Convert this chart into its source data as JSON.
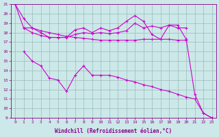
{
  "xlabel": "Windchill (Refroidissement éolien,°C)",
  "xlim": [
    -0.5,
    23.5
  ],
  "ylim": [
    9,
    21
  ],
  "yticks": [
    9,
    10,
    11,
    12,
    13,
    14,
    15,
    16,
    17,
    18,
    19,
    20,
    21
  ],
  "xticks": [
    0,
    1,
    2,
    3,
    4,
    5,
    6,
    7,
    8,
    9,
    10,
    11,
    12,
    13,
    14,
    15,
    16,
    17,
    18,
    19,
    20,
    21,
    22,
    23
  ],
  "background_color": "#cce8e8",
  "line_color": "#cc00cc",
  "grid_color": "#99bbbb",
  "line1_x": [
    0,
    1,
    2,
    3,
    4,
    5,
    6,
    7,
    8,
    9,
    10,
    11,
    12,
    13,
    14,
    15,
    16,
    17,
    18,
    19,
    20
  ],
  "line1_y": [
    21,
    18.5,
    18.5,
    18.2,
    18.0,
    17.8,
    17.6,
    17.5,
    17.4,
    17.3,
    17.2,
    17.2,
    17.2,
    17.2,
    17.2,
    17.3,
    17.3,
    17.3,
    17.3,
    17.2,
    17.2
  ],
  "line2_x": [
    1,
    2,
    3,
    4,
    5,
    6,
    7,
    8,
    9,
    10,
    11,
    12,
    13,
    14,
    15,
    16,
    17,
    18,
    19,
    20
  ],
  "line2_y": [
    18.5,
    18.0,
    17.7,
    17.5,
    17.5,
    17.5,
    17.8,
    18.0,
    17.9,
    18.0,
    17.9,
    18.0,
    18.2,
    19.0,
    18.5,
    18.7,
    18.5,
    18.8,
    18.5,
    18.5
  ],
  "line3_x": [
    0,
    1,
    2,
    3,
    4,
    5,
    6,
    7,
    8,
    9,
    10,
    11,
    12,
    13,
    14,
    15,
    16,
    17,
    18,
    19,
    20,
    21,
    22,
    23
  ],
  "line3_y": [
    21.0,
    19.5,
    18.5,
    18.0,
    17.5,
    17.5,
    17.5,
    18.3,
    18.5,
    18.0,
    18.5,
    18.2,
    18.5,
    19.2,
    19.8,
    19.2,
    17.8,
    17.3,
    18.8,
    18.8,
    17.3,
    11.5,
    9.5,
    9.0
  ],
  "line4_x": [
    1,
    2,
    3,
    4,
    5,
    6,
    7,
    8,
    9,
    10,
    11,
    12,
    13,
    14,
    15,
    16,
    17,
    18,
    19,
    20,
    21,
    22,
    23
  ],
  "line4_y": [
    16.0,
    15.0,
    14.5,
    13.2,
    13.0,
    11.8,
    13.5,
    14.5,
    13.5,
    13.5,
    13.5,
    13.3,
    13.0,
    12.8,
    12.5,
    12.3,
    12.0,
    11.8,
    11.5,
    11.2,
    11.0,
    9.5,
    9.0
  ]
}
